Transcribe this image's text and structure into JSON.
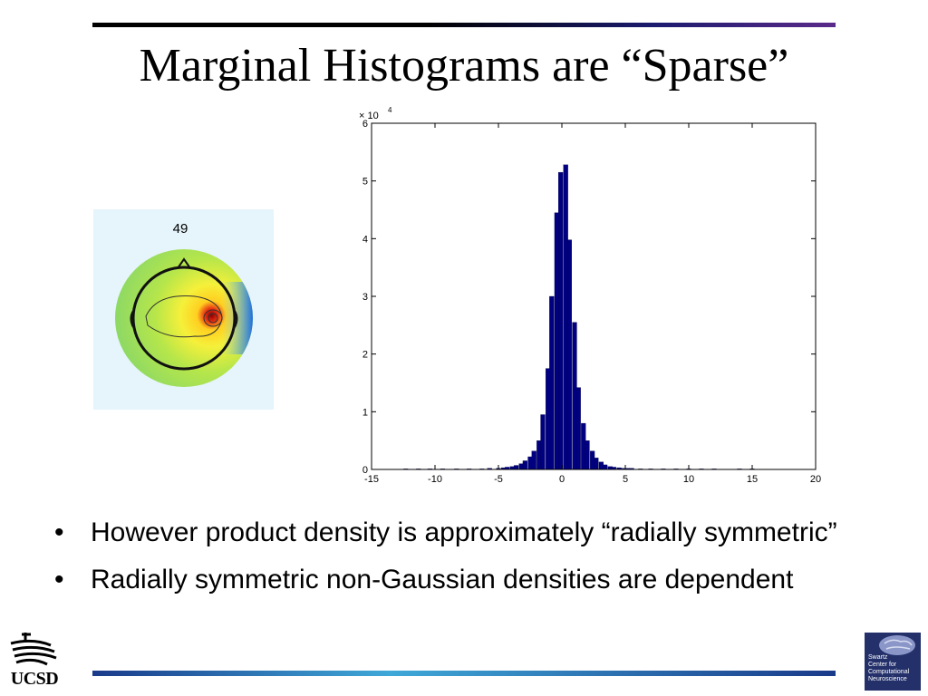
{
  "slide": {
    "title": "Marginal Histograms are “Sparse”",
    "bullets": [
      "However product density is approximately “radially symmetric”",
      "Radially symmetric non-Gaussian densities are dependent"
    ],
    "bullet_glyph": "•"
  },
  "topoplot": {
    "label": "49",
    "background": "#e6f4fb"
  },
  "logos": {
    "left_text": "UCSD",
    "right_lines": [
      "Swartz",
      "Center for",
      "Computational",
      "Neuroscience"
    ]
  },
  "colors": {
    "bar_fill": "#000080",
    "title_text": "#000000"
  },
  "chart_data": {
    "type": "bar",
    "title": "",
    "xlabel": "",
    "ylabel": "",
    "y_multiplier_label": "× 10",
    "y_multiplier_exponent": "4",
    "xlim": [
      -15,
      20
    ],
    "ylim": [
      0,
      6
    ],
    "grid": false,
    "bin_width": 0.35,
    "x_ticks": [
      -15,
      -10,
      -5,
      0,
      5,
      10,
      15,
      20
    ],
    "x_tick_labels": [
      "-15",
      "-10",
      "-5",
      "0",
      "5",
      "10",
      "15",
      "20"
    ],
    "y_ticks": [
      0,
      1,
      2,
      3,
      4,
      5,
      6
    ],
    "y_tick_labels": [
      "0",
      "1",
      "2",
      "3",
      "4",
      "5",
      "6"
    ],
    "x": [
      -12.3,
      -11.3,
      -10.4,
      -9.4,
      -8.3,
      -7.3,
      -6.3,
      -5.7,
      -5.0,
      -4.6,
      -4.3,
      -3.9,
      -3.6,
      -3.2,
      -2.9,
      -2.5,
      -2.2,
      -1.8,
      -1.5,
      -1.1,
      -0.8,
      -0.4,
      -0.1,
      0.3,
      0.6,
      1.0,
      1.3,
      1.7,
      2.0,
      2.4,
      2.7,
      3.1,
      3.4,
      3.8,
      4.1,
      4.5,
      4.8,
      5.2,
      5.5,
      6.2,
      7.0,
      8.0,
      9.0,
      10.0,
      11.0,
      12.0,
      14.0,
      15.0
    ],
    "values": [
      0.01,
      0.01,
      0.01,
      0.01,
      0.01,
      0.01,
      0.01,
      0.02,
      0.02,
      0.03,
      0.04,
      0.05,
      0.07,
      0.1,
      0.15,
      0.22,
      0.32,
      0.5,
      0.95,
      1.75,
      3.0,
      4.45,
      5.15,
      5.28,
      3.98,
      2.55,
      1.42,
      0.8,
      0.5,
      0.32,
      0.2,
      0.13,
      0.08,
      0.05,
      0.04,
      0.03,
      0.02,
      0.02,
      0.02,
      0.01,
      0.01,
      0.01,
      0.01,
      0.01,
      0.01,
      0.01,
      0.01,
      0.01
    ]
  }
}
